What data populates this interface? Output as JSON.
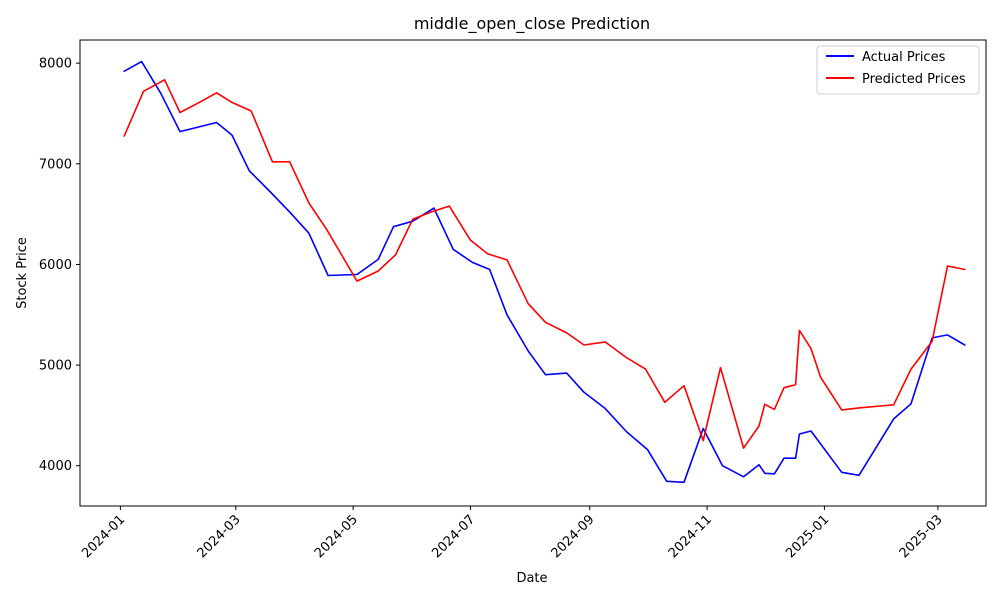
{
  "chart_data": {
    "type": "line",
    "title": "middle_open_close Prediction",
    "xlabel": "Date",
    "ylabel": "Stock Price",
    "x_type": "date",
    "xlim": [
      "2023-12-11",
      "2025-03-26"
    ],
    "ylim": [
      3600,
      8230
    ],
    "x_ticks": [
      {
        "date": "2024-01-01",
        "label": "2024-01"
      },
      {
        "date": "2024-03-01",
        "label": "2024-03"
      },
      {
        "date": "2024-05-01",
        "label": "2024-05"
      },
      {
        "date": "2024-07-01",
        "label": "2024-07"
      },
      {
        "date": "2024-09-01",
        "label": "2024-09"
      },
      {
        "date": "2024-11-01",
        "label": "2024-11"
      },
      {
        "date": "2025-01-01",
        "label": "2025-01"
      },
      {
        "date": "2025-03-01",
        "label": "2025-03"
      }
    ],
    "y_ticks": [
      4000,
      5000,
      6000,
      7000,
      8000
    ],
    "grid": false,
    "legend_position": "top-right",
    "colors": {
      "actual": "#0000ff",
      "predicted": "#ff0000"
    },
    "series": [
      {
        "name": "Actual Prices",
        "color": "#0000ff",
        "points": [
          [
            "2024-01-03",
            7920
          ],
          [
            "2024-01-12",
            8015
          ],
          [
            "2024-01-22",
            7700
          ],
          [
            "2024-02-01",
            7320
          ],
          [
            "2024-02-20",
            7410
          ],
          [
            "2024-02-28",
            7285
          ],
          [
            "2024-03-08",
            6930
          ],
          [
            "2024-03-19",
            6720
          ],
          [
            "2024-03-29",
            6520
          ],
          [
            "2024-04-08",
            6310
          ],
          [
            "2024-04-18",
            5890
          ],
          [
            "2024-05-03",
            5900
          ],
          [
            "2024-05-14",
            6050
          ],
          [
            "2024-05-22",
            6375
          ],
          [
            "2024-06-01",
            6430
          ],
          [
            "2024-06-12",
            6560
          ],
          [
            "2024-06-22",
            6150
          ],
          [
            "2024-07-02",
            6020
          ],
          [
            "2024-07-11",
            5950
          ],
          [
            "2024-07-20",
            5500
          ],
          [
            "2024-07-31",
            5140
          ],
          [
            "2024-08-09",
            4905
          ],
          [
            "2024-08-20",
            4920
          ],
          [
            "2024-08-29",
            4730
          ],
          [
            "2024-09-09",
            4570
          ],
          [
            "2024-09-20",
            4340
          ],
          [
            "2024-10-01",
            4160
          ],
          [
            "2024-10-11",
            3845
          ],
          [
            "2024-10-20",
            3835
          ],
          [
            "2024-10-30",
            4370
          ],
          [
            "2024-11-09",
            4000
          ],
          [
            "2024-11-20",
            3890
          ],
          [
            "2024-11-28",
            4010
          ],
          [
            "2024-12-01",
            3925
          ],
          [
            "2024-12-06",
            3920
          ],
          [
            "2024-12-11",
            4075
          ],
          [
            "2024-12-17",
            4075
          ],
          [
            "2024-12-19",
            4315
          ],
          [
            "2024-12-25",
            4345
          ],
          [
            "2025-01-10",
            3935
          ],
          [
            "2025-01-19",
            3905
          ],
          [
            "2025-02-06",
            4465
          ],
          [
            "2025-02-15",
            4615
          ],
          [
            "2025-02-26",
            5270
          ],
          [
            "2025-03-06",
            5300
          ],
          [
            "2025-03-15",
            5200
          ]
        ]
      },
      {
        "name": "Predicted Prices",
        "color": "#ff0000",
        "points": [
          [
            "2024-01-03",
            7275
          ],
          [
            "2024-01-13",
            7720
          ],
          [
            "2024-01-24",
            7835
          ],
          [
            "2024-02-01",
            7510
          ],
          [
            "2024-02-11",
            7610
          ],
          [
            "2024-02-20",
            7705
          ],
          [
            "2024-02-28",
            7610
          ],
          [
            "2024-03-09",
            7525
          ],
          [
            "2024-03-20",
            7020
          ],
          [
            "2024-03-29",
            7020
          ],
          [
            "2024-04-08",
            6610
          ],
          [
            "2024-04-17",
            6355
          ],
          [
            "2024-05-03",
            5835
          ],
          [
            "2024-05-14",
            5935
          ],
          [
            "2024-05-23",
            6095
          ],
          [
            "2024-06-01",
            6450
          ],
          [
            "2024-06-11",
            6525
          ],
          [
            "2024-06-20",
            6580
          ],
          [
            "2024-07-01",
            6240
          ],
          [
            "2024-07-10",
            6105
          ],
          [
            "2024-07-20",
            6045
          ],
          [
            "2024-07-31",
            5610
          ],
          [
            "2024-08-09",
            5425
          ],
          [
            "2024-08-20",
            5320
          ],
          [
            "2024-08-29",
            5200
          ],
          [
            "2024-09-09",
            5230
          ],
          [
            "2024-09-20",
            5075
          ],
          [
            "2024-09-30",
            4960
          ],
          [
            "2024-10-10",
            4630
          ],
          [
            "2024-10-20",
            4795
          ],
          [
            "2024-10-30",
            4250
          ],
          [
            "2024-11-08",
            4975
          ],
          [
            "2024-11-20",
            4175
          ],
          [
            "2024-11-28",
            4395
          ],
          [
            "2024-12-01",
            4610
          ],
          [
            "2024-12-06",
            4560
          ],
          [
            "2024-12-11",
            4775
          ],
          [
            "2024-12-17",
            4805
          ],
          [
            "2024-12-19",
            5345
          ],
          [
            "2024-12-25",
            5165
          ],
          [
            "2024-12-30",
            4880
          ],
          [
            "2025-01-10",
            4555
          ],
          [
            "2025-01-19",
            4575
          ],
          [
            "2025-02-06",
            4605
          ],
          [
            "2025-02-15",
            4960
          ],
          [
            "2025-02-26",
            5235
          ],
          [
            "2025-03-06",
            5985
          ],
          [
            "2025-03-15",
            5950
          ]
        ]
      }
    ]
  }
}
